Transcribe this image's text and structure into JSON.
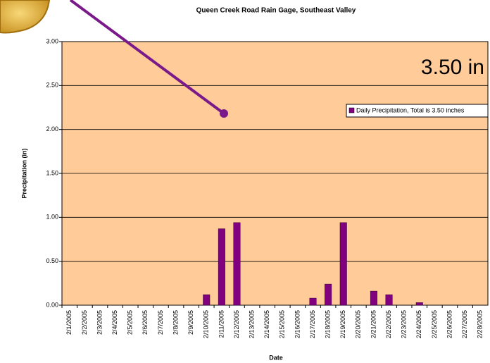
{
  "chart_data": {
    "type": "bar",
    "title": "Queen Creek Road Rain Gage, Southeast Valley",
    "x_label": "Date",
    "y_label": "Precipitation (in)",
    "annotation": "3.50 in",
    "categories": [
      "2/1/2005",
      "2/2/2005",
      "2/3/2005",
      "2/4/2005",
      "2/5/2005",
      "2/6/2005",
      "2/7/2005",
      "2/8/2005",
      "2/9/2005",
      "2/10/2005",
      "2/11/2005",
      "2/12/2005",
      "2/13/2005",
      "2/14/2005",
      "2/15/2005",
      "2/16/2005",
      "2/17/2005",
      "2/18/2005",
      "2/19/2005",
      "2/20/2005",
      "2/21/2005",
      "2/22/2005",
      "2/23/2005",
      "2/24/2005",
      "2/25/2005",
      "2/26/2005",
      "2/27/2005",
      "2/28/2005"
    ],
    "series": [
      {
        "name": "Daily Precipitation, Total is 3.50 inches",
        "color": "#800080",
        "values": [
          0,
          0,
          0,
          0,
          0,
          0,
          0,
          0,
          0,
          0.12,
          0.87,
          0.94,
          0,
          0,
          0,
          0,
          0.08,
          0.24,
          0.94,
          0,
          0.16,
          0.12,
          0,
          0.03,
          0,
          0,
          0,
          0
        ]
      }
    ],
    "ylim": [
      0,
      3
    ],
    "yticks": [
      {
        "value": 0,
        "label": "0.00"
      },
      {
        "value": 0.5,
        "label": "0.50"
      },
      {
        "value": 1,
        "label": "1.00"
      },
      {
        "value": 1.5,
        "label": "1.50"
      },
      {
        "value": 2,
        "label": "2.00"
      },
      {
        "value": 2.5,
        "label": "2.50"
      },
      {
        "value": 3,
        "label": "3.00"
      }
    ],
    "grid": true,
    "legend": "right",
    "plot_background": "#ffcc99"
  }
}
